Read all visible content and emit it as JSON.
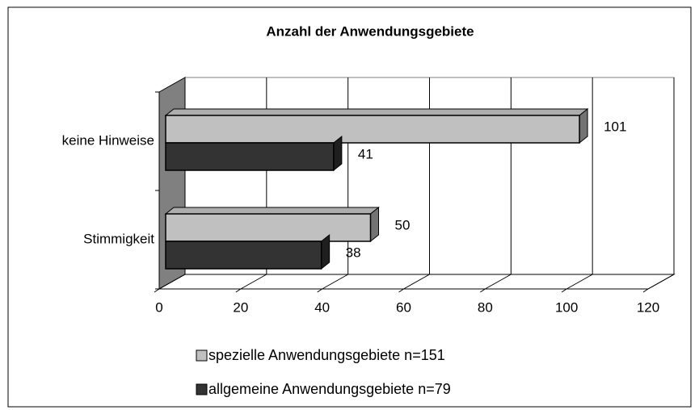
{
  "chart_data": {
    "type": "bar3d_horizontal",
    "title": "Anzahl der Anwendungsgebiete",
    "categories": [
      "keine Hinweise",
      "Stimmigkeit"
    ],
    "series": [
      {
        "name": "spezielle Anwendungsgebiete n=151",
        "color": "#c0c0c0",
        "values": [
          101,
          50
        ]
      },
      {
        "name": "allgemeine Anwendungsgebiete n=79",
        "color": "#333333",
        "values": [
          41,
          38
        ]
      }
    ],
    "xlim": [
      0,
      120
    ],
    "xticks": [
      0,
      20,
      40,
      60,
      80,
      100,
      120
    ],
    "grid": true,
    "legend": "bottom"
  }
}
